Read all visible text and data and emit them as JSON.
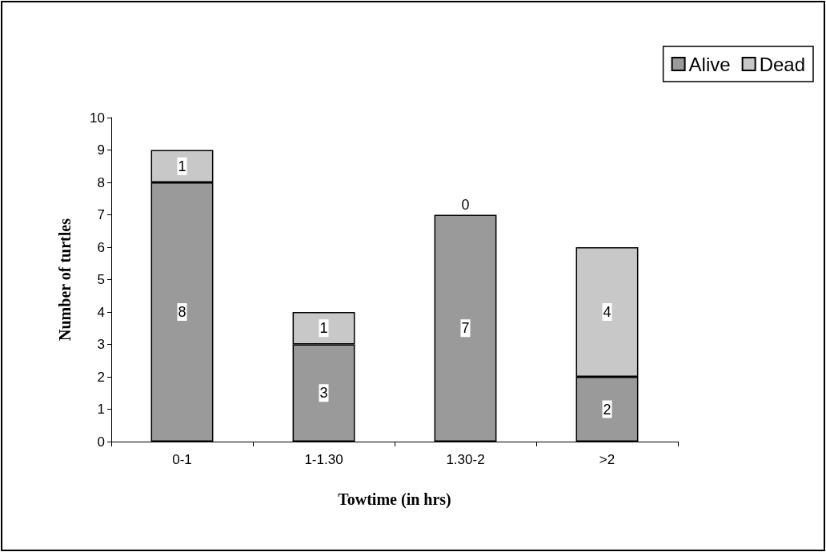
{
  "chart_data": {
    "type": "bar",
    "stacked": true,
    "xlabel": "Towtime (in hrs)",
    "ylabel": "Number of turtles",
    "categories": [
      "0-1",
      "1-1.30",
      "1.30-2",
      ">2"
    ],
    "series": [
      {
        "name": "Alive",
        "color": "#9a9a9a",
        "values": [
          8,
          3,
          7,
          2
        ]
      },
      {
        "name": "Dead",
        "color": "#c8c8c8",
        "values": [
          1,
          1,
          0,
          4
        ]
      }
    ],
    "ylim": [
      0,
      10
    ],
    "yticks": [
      0,
      1,
      2,
      3,
      4,
      5,
      6,
      7,
      8,
      9,
      10
    ],
    "grid": false,
    "legend": "top right",
    "data_labels": true
  }
}
